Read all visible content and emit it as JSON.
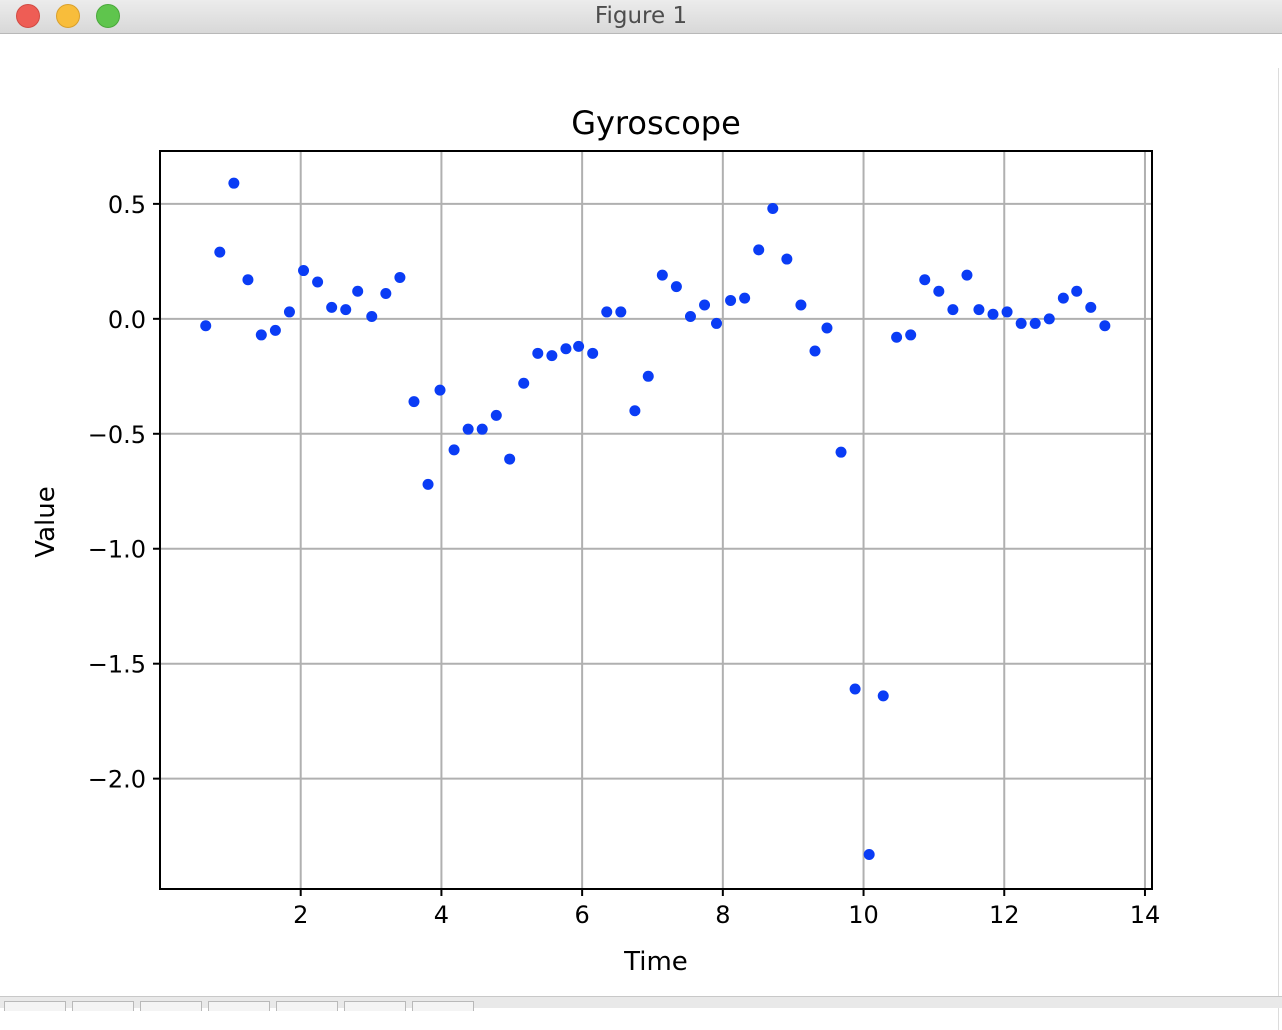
{
  "window": {
    "title": "Figure 1"
  },
  "colors": {
    "point": "#0a3cf5",
    "grid": "#b0b0b0",
    "axes": "#000000"
  },
  "chart_data": {
    "type": "scatter",
    "title": "Gyroscope",
    "xlabel": "Time",
    "ylabel": "Value",
    "xlim": [
      0.0,
      14.1
    ],
    "ylim": [
      -2.48,
      0.73
    ],
    "xticks": [
      2,
      4,
      6,
      8,
      10,
      12,
      14
    ],
    "yticks": [
      0.5,
      0.0,
      -0.5,
      -1.0,
      -1.5,
      -2.0
    ],
    "xtick_labels": [
      "2",
      "4",
      "6",
      "8",
      "10",
      "12",
      "14"
    ],
    "ytick_labels": [
      "0.5",
      "0.0",
      "−0.5",
      "−1.0",
      "−1.5",
      "−2.0"
    ],
    "grid": true,
    "x": [
      0.65,
      0.85,
      1.05,
      1.25,
      1.44,
      1.64,
      1.84,
      2.04,
      2.24,
      2.44,
      2.64,
      2.81,
      3.01,
      3.21,
      3.41,
      3.61,
      3.81,
      3.98,
      4.18,
      4.38,
      4.58,
      4.78,
      4.97,
      5.17,
      5.37,
      5.57,
      5.77,
      5.95,
      6.15,
      6.35,
      6.55,
      6.75,
      6.94,
      7.14,
      7.34,
      7.54,
      7.74,
      7.91,
      8.11,
      8.31,
      8.51,
      8.71,
      8.91,
      9.11,
      9.31,
      9.48,
      9.68,
      9.88,
      10.08,
      10.28,
      10.47,
      10.67,
      10.87,
      11.07,
      11.27,
      11.47,
      11.64,
      11.84,
      12.04,
      12.24,
      12.44,
      12.64,
      12.84,
      13.03,
      13.23,
      13.43
    ],
    "y": [
      -0.03,
      0.29,
      0.59,
      0.17,
      -0.07,
      -0.05,
      0.03,
      0.21,
      0.16,
      0.05,
      0.04,
      0.12,
      0.01,
      0.11,
      0.18,
      -0.36,
      -0.72,
      -0.31,
      -0.57,
      -0.48,
      -0.48,
      -0.42,
      -0.61,
      -0.28,
      -0.15,
      -0.16,
      -0.13,
      -0.12,
      -0.15,
      0.03,
      0.03,
      -0.4,
      -0.25,
      0.19,
      0.14,
      0.01,
      0.06,
      -0.02,
      0.08,
      0.09,
      0.3,
      0.48,
      0.26,
      0.06,
      -0.14,
      -0.04,
      -0.58,
      -1.61,
      -2.33,
      -1.64,
      -0.08,
      -0.07,
      0.17,
      0.12,
      0.04,
      0.19,
      0.04,
      0.02,
      0.03,
      -0.02,
      -0.02,
      0.0,
      0.09,
      0.12,
      0.05,
      -0.03
    ]
  }
}
